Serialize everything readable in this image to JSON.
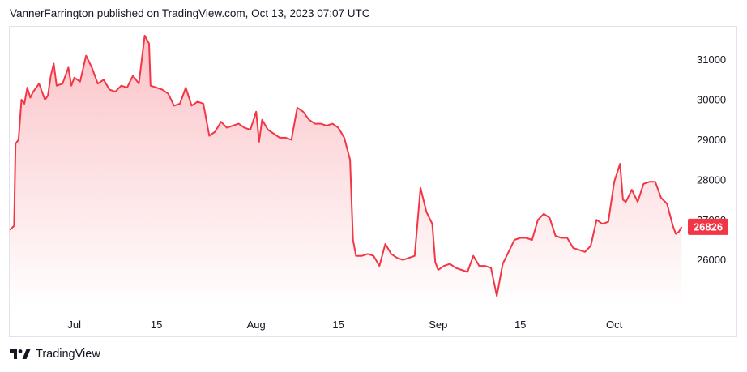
{
  "header": {
    "publish_line": "VannerFarrington published on TradingView.com, Oct 13, 2023 07:07 UTC"
  },
  "footer": {
    "brand": "TradingView",
    "logo_icon": "tradingview-logo-icon"
  },
  "chart_data": {
    "type": "area",
    "title": "",
    "xlabel": "",
    "ylabel": "",
    "line_color": "#f23645",
    "fill_color": "#f23645",
    "ylim": [
      24800,
      31800
    ],
    "y_ticks": [
      26000,
      27000,
      28000,
      29000,
      30000,
      31000
    ],
    "x_ticks": [
      {
        "label": "Jul",
        "date": "2023-07-01"
      },
      {
        "label": "15",
        "date": "2023-07-15"
      },
      {
        "label": "Aug",
        "date": "2023-08-01"
      },
      {
        "label": "15",
        "date": "2023-08-15"
      },
      {
        "label": "Sep",
        "date": "2023-09-01"
      },
      {
        "label": "15",
        "date": "2023-09-15"
      },
      {
        "label": "Oct",
        "date": "2023-10-01"
      }
    ],
    "last_price": "26826",
    "series": [
      {
        "points": [
          [
            "2023-06-20",
            26750
          ],
          [
            "2023-06-20T18:00",
            26850
          ],
          [
            "2023-06-21",
            28900
          ],
          [
            "2023-06-21T12:00",
            29000
          ],
          [
            "2023-06-22",
            30000
          ],
          [
            "2023-06-22T12:00",
            29900
          ],
          [
            "2023-06-23",
            30300
          ],
          [
            "2023-06-23T12:00",
            30050
          ],
          [
            "2023-06-24",
            30200
          ],
          [
            "2023-06-25",
            30400
          ],
          [
            "2023-06-26",
            30000
          ],
          [
            "2023-06-26T12:00",
            30100
          ],
          [
            "2023-06-27",
            30600
          ],
          [
            "2023-06-27T12:00",
            30900
          ],
          [
            "2023-06-28",
            30350
          ],
          [
            "2023-06-29",
            30400
          ],
          [
            "2023-06-30",
            30800
          ],
          [
            "2023-06-30T12:00",
            30350
          ],
          [
            "2023-07-01",
            30550
          ],
          [
            "2023-07-02",
            30450
          ],
          [
            "2023-07-03",
            31100
          ],
          [
            "2023-07-04",
            30800
          ],
          [
            "2023-07-05",
            30400
          ],
          [
            "2023-07-06",
            30500
          ],
          [
            "2023-07-07",
            30250
          ],
          [
            "2023-07-08",
            30200
          ],
          [
            "2023-07-09",
            30350
          ],
          [
            "2023-07-10",
            30300
          ],
          [
            "2023-07-11",
            30600
          ],
          [
            "2023-07-12",
            30400
          ],
          [
            "2023-07-13",
            31600
          ],
          [
            "2023-07-13T18:00",
            31400
          ],
          [
            "2023-07-14",
            30350
          ],
          [
            "2023-07-15",
            30300
          ],
          [
            "2023-07-16",
            30250
          ],
          [
            "2023-07-17",
            30150
          ],
          [
            "2023-07-18",
            29850
          ],
          [
            "2023-07-19",
            29900
          ],
          [
            "2023-07-20",
            30300
          ],
          [
            "2023-07-21",
            29850
          ],
          [
            "2023-07-22",
            29950
          ],
          [
            "2023-07-23",
            29900
          ],
          [
            "2023-07-24",
            29100
          ],
          [
            "2023-07-25",
            29200
          ],
          [
            "2023-07-26",
            29450
          ],
          [
            "2023-07-27",
            29300
          ],
          [
            "2023-07-28",
            29350
          ],
          [
            "2023-07-29",
            29400
          ],
          [
            "2023-07-30",
            29300
          ],
          [
            "2023-07-31",
            29250
          ],
          [
            "2023-08-01",
            29700
          ],
          [
            "2023-08-01T12:00",
            28950
          ],
          [
            "2023-08-02",
            29500
          ],
          [
            "2023-08-03",
            29250
          ],
          [
            "2023-08-04",
            29150
          ],
          [
            "2023-08-05",
            29050
          ],
          [
            "2023-08-06",
            29050
          ],
          [
            "2023-08-07",
            29000
          ],
          [
            "2023-08-08",
            29800
          ],
          [
            "2023-08-09",
            29700
          ],
          [
            "2023-08-10",
            29500
          ],
          [
            "2023-08-11",
            29400
          ],
          [
            "2023-08-12",
            29400
          ],
          [
            "2023-08-13",
            29350
          ],
          [
            "2023-08-14",
            29400
          ],
          [
            "2023-08-15",
            29300
          ],
          [
            "2023-08-16",
            29050
          ],
          [
            "2023-08-17",
            28500
          ],
          [
            "2023-08-17T12:00",
            26500
          ],
          [
            "2023-08-18",
            26100
          ],
          [
            "2023-08-19",
            26100
          ],
          [
            "2023-08-20",
            26150
          ],
          [
            "2023-08-21",
            26100
          ],
          [
            "2023-08-22",
            25850
          ],
          [
            "2023-08-23",
            26400
          ],
          [
            "2023-08-24",
            26150
          ],
          [
            "2023-08-25",
            26050
          ],
          [
            "2023-08-26",
            26000
          ],
          [
            "2023-08-27",
            26050
          ],
          [
            "2023-08-28",
            26100
          ],
          [
            "2023-08-29",
            27800
          ],
          [
            "2023-08-30",
            27200
          ],
          [
            "2023-08-31",
            26900
          ],
          [
            "2023-08-31T12:00",
            25950
          ],
          [
            "2023-09-01",
            25750
          ],
          [
            "2023-09-02",
            25850
          ],
          [
            "2023-09-03",
            25900
          ],
          [
            "2023-09-04",
            25800
          ],
          [
            "2023-09-05",
            25750
          ],
          [
            "2023-09-06",
            25700
          ],
          [
            "2023-09-07",
            26100
          ],
          [
            "2023-09-08",
            25850
          ],
          [
            "2023-09-09",
            25850
          ],
          [
            "2023-09-10",
            25800
          ],
          [
            "2023-09-11",
            25100
          ],
          [
            "2023-09-12",
            25900
          ],
          [
            "2023-09-13",
            26200
          ],
          [
            "2023-09-14",
            26500
          ],
          [
            "2023-09-15",
            26550
          ],
          [
            "2023-09-16",
            26550
          ],
          [
            "2023-09-17",
            26500
          ],
          [
            "2023-09-18",
            27000
          ],
          [
            "2023-09-19",
            27150
          ],
          [
            "2023-09-20",
            27050
          ],
          [
            "2023-09-21",
            26600
          ],
          [
            "2023-09-22",
            26550
          ],
          [
            "2023-09-23",
            26550
          ],
          [
            "2023-09-24",
            26300
          ],
          [
            "2023-09-25",
            26250
          ],
          [
            "2023-09-26",
            26200
          ],
          [
            "2023-09-27",
            26350
          ],
          [
            "2023-09-28",
            27000
          ],
          [
            "2023-09-29",
            26900
          ],
          [
            "2023-09-30",
            26950
          ],
          [
            "2023-10-01",
            27950
          ],
          [
            "2023-10-02",
            28400
          ],
          [
            "2023-10-02T12:00",
            27500
          ],
          [
            "2023-10-03",
            27450
          ],
          [
            "2023-10-04",
            27750
          ],
          [
            "2023-10-05",
            27450
          ],
          [
            "2023-10-06",
            27900
          ],
          [
            "2023-10-07",
            27950
          ],
          [
            "2023-10-08",
            27950
          ],
          [
            "2023-10-09",
            27550
          ],
          [
            "2023-10-10",
            27400
          ],
          [
            "2023-10-11",
            26850
          ],
          [
            "2023-10-11T12:00",
            26650
          ],
          [
            "2023-10-12",
            26700
          ],
          [
            "2023-10-12T12:00",
            26826
          ]
        ]
      }
    ]
  }
}
